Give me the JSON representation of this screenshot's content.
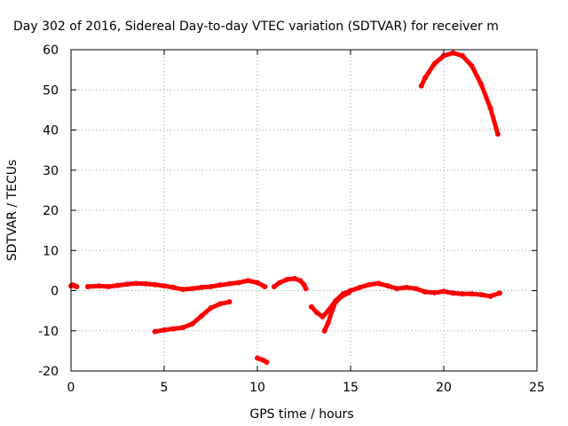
{
  "chart_data": {
    "type": "line",
    "title": "Day 302 of 2016, Sidereal Day-to-day VTEC variation (SDTVAR) for receiver m",
    "xlabel": "GPS time / hours",
    "ylabel": "SDTVAR / TECUs",
    "xlim": [
      0,
      25
    ],
    "ylim": [
      -20,
      60
    ],
    "grid": true,
    "x_ticks": [
      0,
      5,
      10,
      15,
      20,
      25
    ],
    "y_ticks": [
      -20,
      -10,
      0,
      10,
      20,
      30,
      40,
      50,
      60
    ],
    "color": "#ff0000",
    "series": [
      {
        "x": [
          0.0,
          0.1,
          0.2,
          0.3
        ],
        "y": [
          1.2,
          1.4,
          1.2,
          1.0
        ]
      },
      {
        "x": [
          0.9,
          1.5,
          2.0,
          2.5,
          3.0,
          3.5,
          4.0,
          4.5,
          5.0,
          5.5,
          6.0,
          6.5,
          7.0,
          7.5,
          8.0,
          8.5,
          9.0,
          9.5,
          10.0,
          10.4
        ],
        "y": [
          1.0,
          1.2,
          1.0,
          1.3,
          1.6,
          1.8,
          1.7,
          1.5,
          1.2,
          0.8,
          0.3,
          0.5,
          0.8,
          1.0,
          1.4,
          1.7,
          2.0,
          2.5,
          2.0,
          1.0
        ]
      },
      {
        "x": [
          4.5,
          5.0,
          5.5,
          6.0,
          6.5,
          7.0,
          7.5,
          8.0,
          8.5
        ],
        "y": [
          -10.2,
          -9.8,
          -9.5,
          -9.2,
          -8.3,
          -6.3,
          -4.3,
          -3.3,
          -2.8
        ]
      },
      {
        "x": [
          10.0,
          10.3,
          10.5
        ],
        "y": [
          -16.8,
          -17.3,
          -17.8
        ]
      },
      {
        "x": [
          10.9,
          11.2,
          11.6,
          12.0,
          12.3,
          12.5,
          12.6
        ],
        "y": [
          1.0,
          2.0,
          2.8,
          3.0,
          2.5,
          1.5,
          0.5
        ]
      },
      {
        "x": [
          12.9,
          13.2,
          13.5,
          13.8,
          14.2,
          14.6,
          15.0,
          15.5,
          16.0,
          16.5,
          17.0,
          17.5,
          18.0,
          18.5,
          19.0,
          19.5,
          20.0,
          20.5,
          21.0,
          21.5,
          22.0,
          22.5,
          23.0
        ],
        "y": [
          -4.0,
          -5.5,
          -6.5,
          -5.0,
          -2.5,
          -0.8,
          0.0,
          0.8,
          1.5,
          1.8,
          1.2,
          0.5,
          0.8,
          0.5,
          -0.3,
          -0.5,
          -0.2,
          -0.6,
          -0.8,
          -0.8,
          -1.0,
          -1.4,
          -0.6
        ]
      },
      {
        "x": [
          13.6,
          13.8,
          14.0,
          14.2,
          14.5,
          14.9
        ],
        "y": [
          -10.0,
          -8.0,
          -5.0,
          -2.8,
          -1.5,
          -0.5
        ]
      },
      {
        "x": [
          18.8,
          19.0,
          19.5,
          20.0,
          20.5,
          21.0,
          21.5,
          22.0,
          22.5,
          22.9
        ],
        "y": [
          51.0,
          53.0,
          56.5,
          58.5,
          59.2,
          58.5,
          56.0,
          51.5,
          45.5,
          39.0
        ]
      }
    ]
  }
}
